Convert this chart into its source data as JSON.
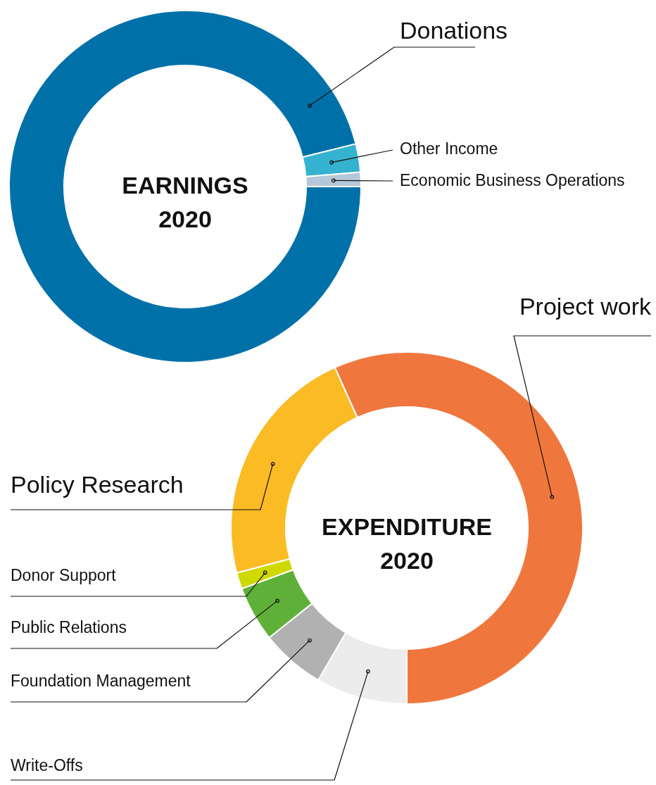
{
  "chart_data": [
    {
      "type": "donut",
      "title": "EARNINGS 2020",
      "categories": [
        "Donations",
        "Other Income",
        "Economic Business Operations"
      ],
      "values": [
        96.1,
        2.6,
        1.3
      ],
      "colors": [
        "#0071a8",
        "#35b2cf",
        "#b5c8d8"
      ]
    },
    {
      "type": "donut",
      "title": "EXPENDITURE 2020",
      "categories": [
        "Write-Offs",
        "Foundation Management",
        "Public Relations",
        "Donor Support",
        "Policy Research",
        "Project work"
      ],
      "values": [
        8.4,
        5.9,
        5.1,
        1.5,
        22.4,
        56.7
      ],
      "colors": [
        "#ececec",
        "#b1b1b1",
        "#5fb038",
        "#cfd800",
        "#fbbb24",
        "#ef773d"
      ]
    }
  ]
}
